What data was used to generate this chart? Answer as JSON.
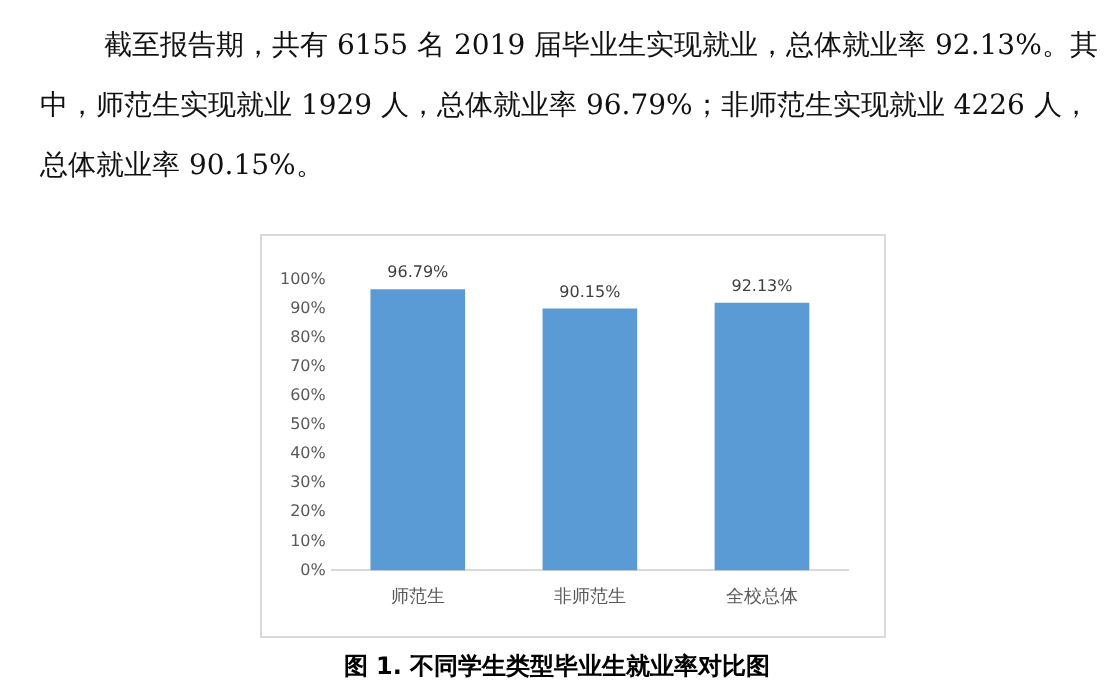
{
  "chart_data": {
    "type": "bar",
    "title": "图 1. 不同学生类型毕业生就业率对比图",
    "annotations": [
      "截至报告期，共有 6155 名 2019 届毕业生实现就业，总体就业率 92.13%。其中，师范生实现就业 1929 人，总体就业率 96.79%；非师范生实现就业 4226 人，总体就业率 90.15%。"
    ],
    "categories": [
      "师范生",
      "非师范生",
      "全校总体"
    ],
    "values": [
      96.79,
      90.15,
      92.13
    ],
    "value_labels": [
      "96.79%",
      "90.15%",
      "92.13%"
    ],
    "color": "#5b9bd5",
    "ylim": [
      0,
      100
    ],
    "yticks": [
      {
        "value": 0,
        "label": "0%"
      },
      {
        "value": 10,
        "label": "10%"
      },
      {
        "value": 20,
        "label": "20%"
      },
      {
        "value": 30,
        "label": "30%"
      },
      {
        "value": 40,
        "label": "40%"
      },
      {
        "value": 50,
        "label": "50%"
      },
      {
        "value": 60,
        "label": "60%"
      },
      {
        "value": 70,
        "label": "70%"
      },
      {
        "value": 80,
        "label": "80%"
      },
      {
        "value": 90,
        "label": "90%"
      },
      {
        "value": 100,
        "label": "100%"
      }
    ],
    "grid": false,
    "legend": false
  }
}
